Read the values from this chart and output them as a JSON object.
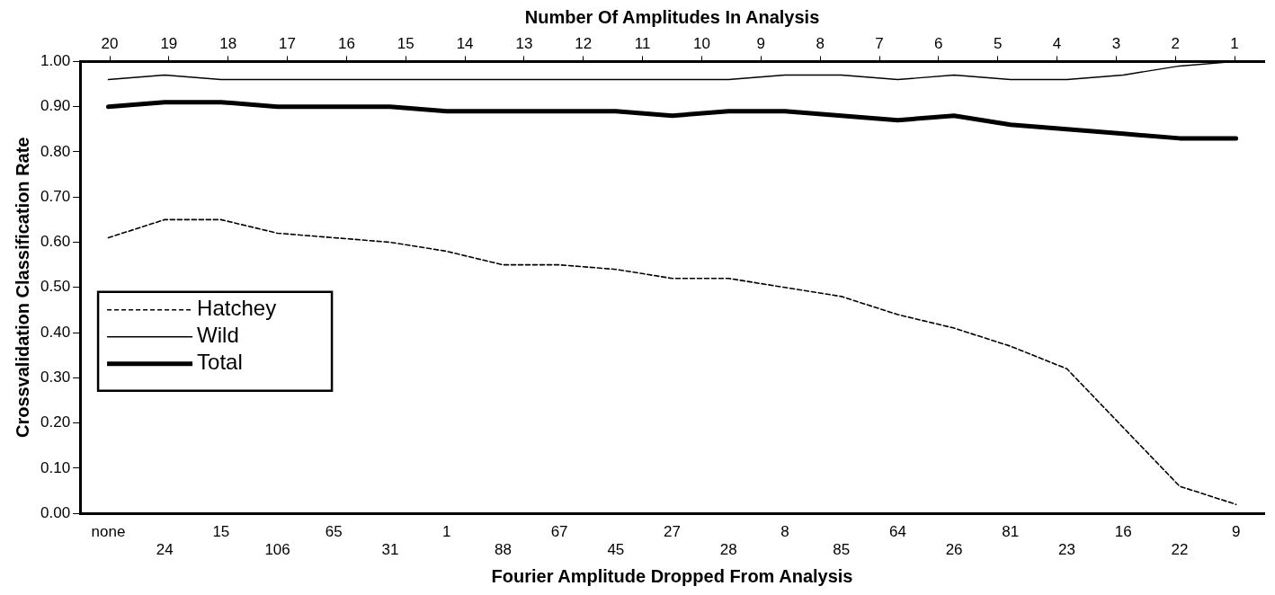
{
  "chart_data": {
    "type": "line",
    "xlabel": "Fourier Amplitude Dropped From Analysis",
    "ylabel": "Crossvalidation Classification Rate",
    "x2label": "Number Of Amplitudes In Analysis",
    "categories": [
      "none",
      "24",
      "15",
      "106",
      "65",
      "31",
      "1",
      "88",
      "67",
      "45",
      "27",
      "28",
      "8",
      "85",
      "64",
      "26",
      "81",
      "23",
      "16",
      "22",
      "9"
    ],
    "series": [
      {
        "name": "Hatchey",
        "color": "#000000",
        "line_style": "dashed",
        "values": [
          0.61,
          0.65,
          0.65,
          0.62,
          0.61,
          0.6,
          0.58,
          0.55,
          0.55,
          0.54,
          0.52,
          0.52,
          0.5,
          0.48,
          0.44,
          0.41,
          0.37,
          0.32,
          0.19,
          0.06,
          0.02
        ]
      },
      {
        "name": "Wild",
        "color": "#000000",
        "line_style": "solid",
        "values": [
          0.96,
          0.97,
          0.96,
          0.96,
          0.96,
          0.96,
          0.96,
          0.96,
          0.96,
          0.96,
          0.96,
          0.96,
          0.97,
          0.97,
          0.96,
          0.97,
          0.96,
          0.96,
          0.97,
          0.99,
          1.0
        ]
      },
      {
        "name": "Total",
        "color": "#000000",
        "line_style": "solid",
        "values": [
          0.9,
          0.91,
          0.91,
          0.9,
          0.9,
          0.9,
          0.89,
          0.89,
          0.89,
          0.89,
          0.88,
          0.89,
          0.89,
          0.88,
          0.87,
          0.88,
          0.86,
          0.85,
          0.84,
          0.83,
          0.83
        ]
      }
    ],
    "ylim": [
      0,
      1
    ],
    "yticks": [
      {
        "value": 0,
        "label": "0.00"
      },
      {
        "value": 0.1,
        "label": "0.10"
      },
      {
        "value": 0.2,
        "label": "0.20"
      },
      {
        "value": 0.3,
        "label": "0.30"
      },
      {
        "value": 0.4,
        "label": "0.40"
      },
      {
        "value": 0.5,
        "label": "0.50"
      },
      {
        "value": 0.6,
        "label": "0.60"
      },
      {
        "value": 0.7,
        "label": "0.70"
      },
      {
        "value": 0.8,
        "label": "0.80"
      },
      {
        "value": 0.9,
        "label": "0.90"
      },
      {
        "value": 1,
        "label": "1.00"
      }
    ],
    "x2lim": [
      20.5,
      0.5
    ],
    "x2ticks": [
      20,
      19,
      18,
      17,
      16,
      15,
      14,
      13,
      12,
      11,
      10,
      9,
      8,
      7,
      6,
      5,
      4,
      3,
      2,
      1
    ],
    "grid": false,
    "legend": "left",
    "marker": "none"
  }
}
